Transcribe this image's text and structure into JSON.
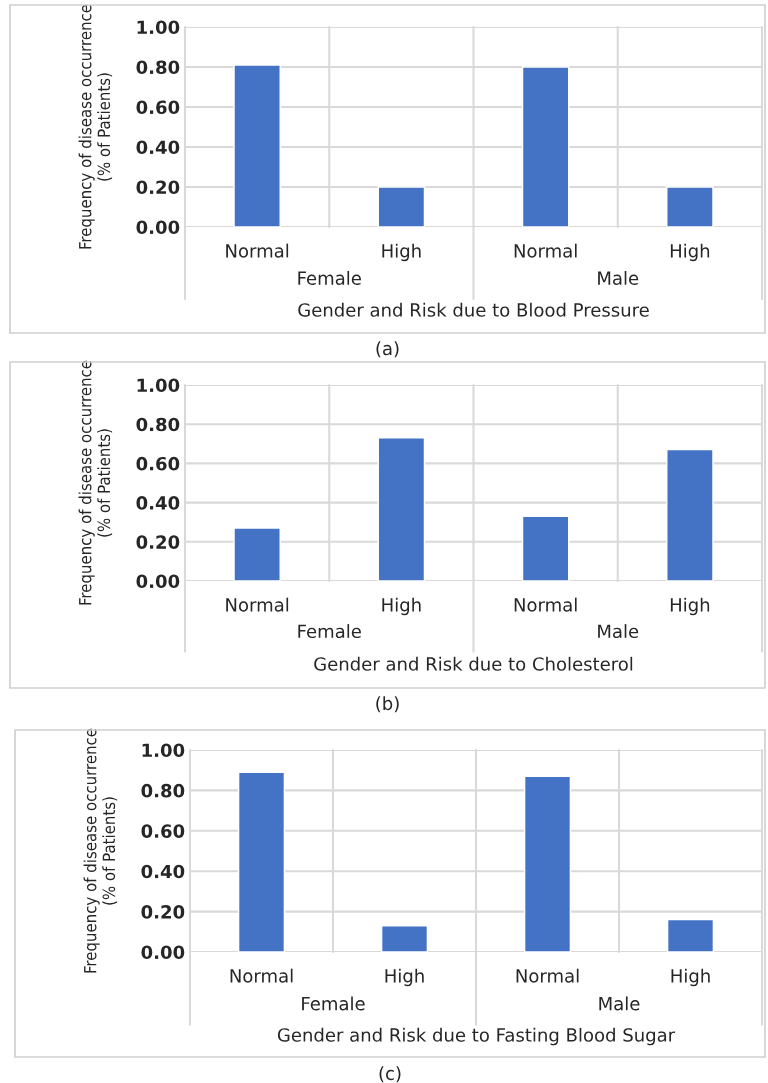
{
  "chart_data": [
    {
      "type": "bar",
      "categories": [
        "Normal",
        "High",
        "Normal",
        "High"
      ],
      "values": [
        0.81,
        0.2,
        0.8,
        0.2
      ],
      "color": "#4472c4",
      "xlabel": "Gender and Risk due to Blood Pressure",
      "ylabel": "Frequency of disease occurrence\n(% of Patients)",
      "ylim": [
        0,
        1
      ],
      "yticks": [
        {
          "value": 0,
          "label": "0.00"
        },
        {
          "value": 0.2,
          "label": "0.20"
        },
        {
          "value": 0.4,
          "label": "0.40"
        },
        {
          "value": 0.6,
          "label": "0.60"
        },
        {
          "value": 0.8,
          "label": "0.80"
        },
        {
          "value": 1,
          "label": "1.00"
        }
      ],
      "grid": true,
      "annotations": [
        "Female",
        "Male",
        "(a)"
      ]
    },
    {
      "type": "bar",
      "categories": [
        "Normal",
        "High",
        "Normal",
        "High"
      ],
      "values": [
        0.27,
        0.73,
        0.33,
        0.67
      ],
      "color": "#4472c4",
      "xlabel": "Gender and Risk due to Cholesterol",
      "ylabel": "Frequency of disease occurrence\n(% of Patients)",
      "ylim": [
        0,
        1
      ],
      "yticks": [
        {
          "value": 0,
          "label": "0.00"
        },
        {
          "value": 0.2,
          "label": "0.20"
        },
        {
          "value": 0.4,
          "label": "0.40"
        },
        {
          "value": 0.6,
          "label": "0.60"
        },
        {
          "value": 0.8,
          "label": "0.80"
        },
        {
          "value": 1,
          "label": "1.00"
        }
      ],
      "grid": true,
      "annotations": [
        "Female",
        "Male",
        "(b)"
      ]
    },
    {
      "type": "bar",
      "categories": [
        "Normal",
        "High",
        "Normal",
        "High"
      ],
      "values": [
        0.89,
        0.13,
        0.87,
        0.16
      ],
      "color": "#4472c4",
      "xlabel": "Gender and Risk due to Fasting Blood Sugar",
      "ylabel": "Frequency of disease occurrence\n(% of Patients)",
      "ylim": [
        0,
        1
      ],
      "yticks": [
        {
          "value": 0,
          "label": "0.00"
        },
        {
          "value": 0.2,
          "label": "0.20"
        },
        {
          "value": 0.4,
          "label": "0.40"
        },
        {
          "value": 0.6,
          "label": "0.60"
        },
        {
          "value": 0.8,
          "label": "0.80"
        },
        {
          "value": 1,
          "label": "1.00"
        }
      ],
      "grid": true,
      "annotations": [
        "Female",
        "Male",
        "(c)"
      ]
    }
  ]
}
